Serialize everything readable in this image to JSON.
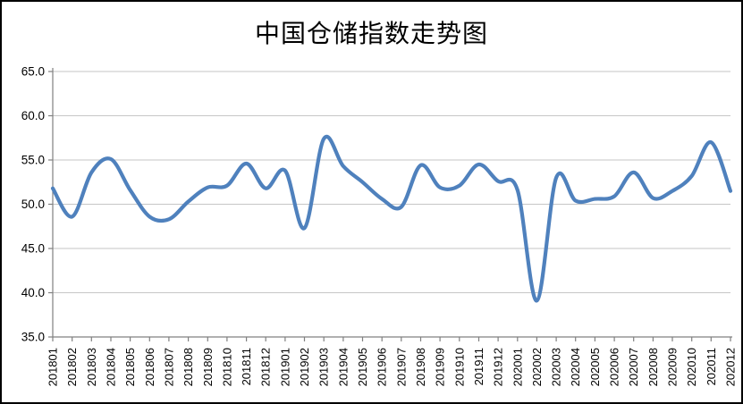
{
  "title": "中国仓储指数走势图",
  "chart_data": {
    "type": "line",
    "title": "中国仓储指数走势图",
    "smooth": true,
    "legend": "none",
    "grid": true,
    "categories": [
      "201801",
      "201802",
      "201803",
      "201804",
      "201805",
      "201806",
      "201807",
      "201808",
      "201809",
      "201810",
      "201811",
      "201812",
      "201901",
      "201902",
      "201903",
      "201904",
      "201905",
      "201906",
      "201907",
      "201908",
      "201909",
      "201910",
      "201911",
      "201912",
      "202001",
      "202002",
      "202003",
      "202004",
      "202005",
      "202006",
      "202007",
      "202008",
      "202009",
      "202010",
      "202011",
      "202012"
    ],
    "values": [
      51.8,
      48.6,
      53.6,
      55.1,
      51.6,
      48.6,
      48.3,
      50.3,
      51.9,
      52.1,
      54.6,
      51.8,
      53.8,
      47.3,
      57.4,
      54.3,
      52.5,
      50.6,
      49.7,
      54.4,
      51.9,
      52.1,
      54.5,
      52.6,
      51.6,
      39.1,
      53.0,
      50.4,
      50.6,
      50.9,
      53.6,
      50.7,
      51.5,
      53.2,
      57.0,
      51.5
    ],
    "ylim": [
      35,
      65
    ],
    "ytick_step": 5,
    "ytick_labels": [
      "65.0",
      "60.0",
      "55.0",
      "50.0",
      "45.0",
      "40.0",
      "35.0"
    ],
    "xlabel": "",
    "ylabel": "",
    "line_color": "#4F81BD",
    "gridline_color": "#C6C6C6",
    "axis_color": "#808080",
    "label_color": "#000000",
    "frame_color": "#000000"
  }
}
